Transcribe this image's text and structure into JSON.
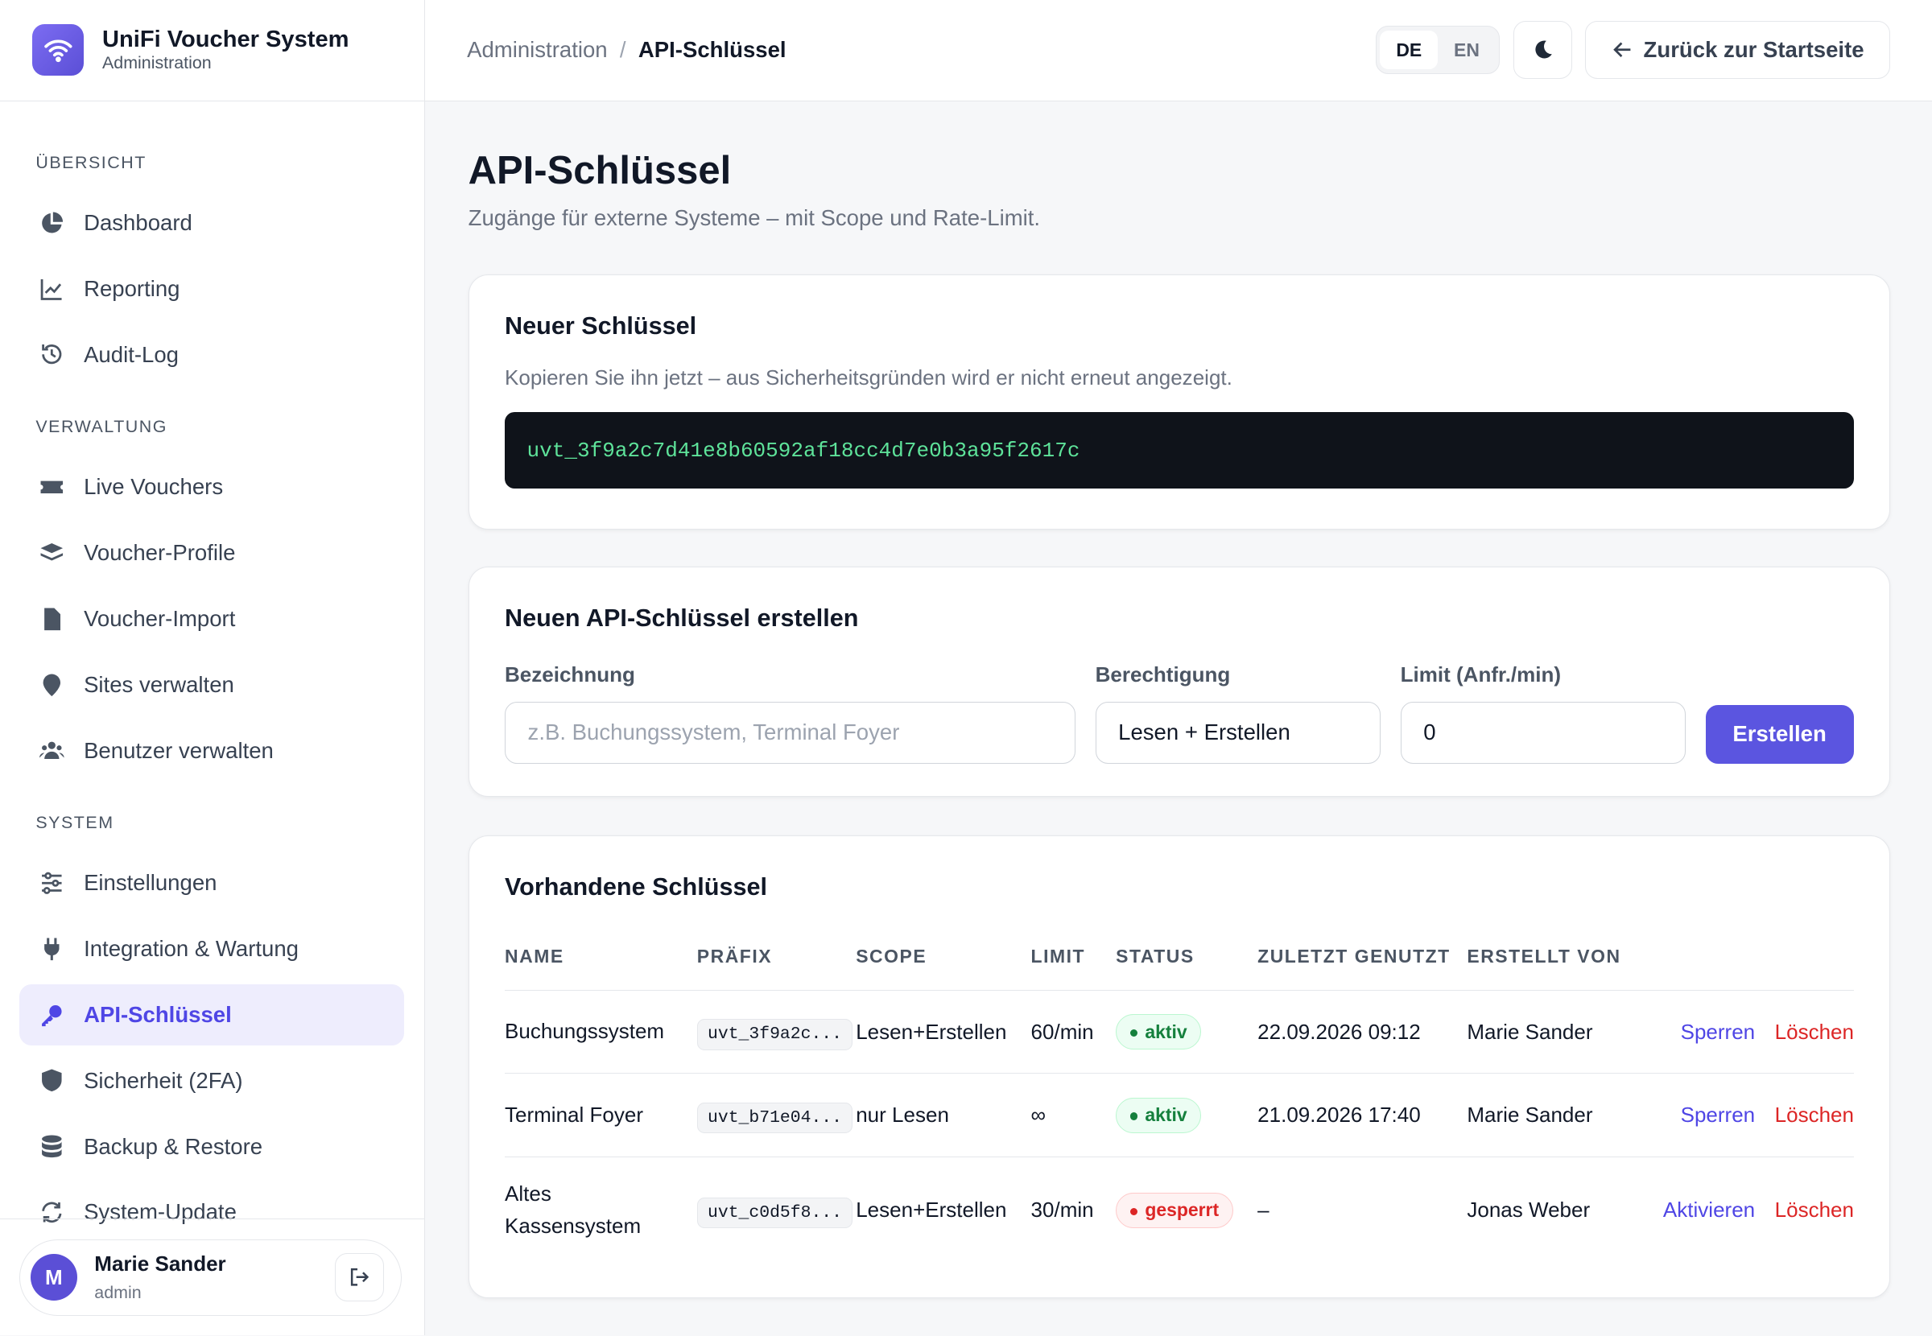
{
  "brand": {
    "title": "UniFi Voucher System",
    "subtitle": "Administration"
  },
  "header": {
    "breadcrumb": [
      "Administration",
      "API-Schlüssel"
    ],
    "languages": [
      "DE",
      "EN"
    ],
    "back_button": "Zurück zur Startseite"
  },
  "sidebar": {
    "sections": [
      {
        "heading": "ÜBERSICHT",
        "items": [
          "Dashboard",
          "Reporting",
          "Audit-Log"
        ]
      },
      {
        "heading": "VERWALTUNG",
        "items": [
          "Live Vouchers",
          "Voucher-Profile",
          "Voucher-Import",
          "Sites verwalten",
          "Benutzer verwalten"
        ]
      },
      {
        "heading": "SYSTEM",
        "items": [
          "Einstellungen",
          "Integration & Wartung",
          "API-Schlüssel",
          "Sicherheit (2FA)",
          "Backup & Restore",
          "System-Update"
        ]
      }
    ]
  },
  "user": {
    "avatar": "M",
    "name": "Marie Sander",
    "role": "admin"
  },
  "page": {
    "title": "API-Schlüssel",
    "subtitle": "Zugänge für externe Systeme – mit Scope und Rate-Limit."
  },
  "new_key": {
    "heading": "Neuer Schlüssel",
    "note": "Kopieren Sie ihn jetzt – aus Sicherheitsgründen wird er nicht erneut angezeigt.",
    "key": "uvt_3f9a2c7d41e8b60592af18cc4d7e0b3a95f2617c"
  },
  "create_form": {
    "heading": "Neuen API-Schlüssel erstellen",
    "fields": [
      {
        "label": "Bezeichnung",
        "placeholder": "z.B. Buchungssystem, Terminal Foyer"
      },
      {
        "label": "Berechtigung",
        "value": "Lesen + Erstellen"
      },
      {
        "label": "Limit (Anfr./min)",
        "value": 0
      }
    ],
    "button": "Erstellen"
  },
  "keys_table": {
    "heading": "Vorhandene Schlüssel",
    "columns": [
      "NAME",
      "PRÄFIX",
      "SCOPE",
      "LIMIT",
      "STATUS",
      "ZULETZT GENUTZT",
      "ERSTELLT VON"
    ],
    "rows": [
      {
        "name": "Buchungssystem",
        "prefix": "uvt_3f9a2c...",
        "scope": "Lesen+Erstellen",
        "limit": "60/min",
        "status": "aktiv",
        "last_used": "22.09.2026 09:12",
        "created_by": "Marie Sander",
        "actions": [
          "Sperren",
          "Löschen"
        ]
      },
      {
        "name": "Terminal Foyer",
        "prefix": "uvt_b71e04...",
        "scope": "nur Lesen",
        "limit": "∞",
        "status": "aktiv",
        "last_used": "21.09.2026 17:40",
        "created_by": "Marie Sander",
        "actions": [
          "Sperren",
          "Löschen"
        ]
      },
      {
        "name": "Altes Kassensystem",
        "prefix": "uvt_c0d5f8...",
        "scope": "Lesen+Erstellen",
        "limit": "30/min",
        "status": "gesperrt",
        "last_used": "–",
        "created_by": "Jonas Weber",
        "actions": [
          "Aktivieren",
          "Löschen"
        ]
      }
    ]
  }
}
